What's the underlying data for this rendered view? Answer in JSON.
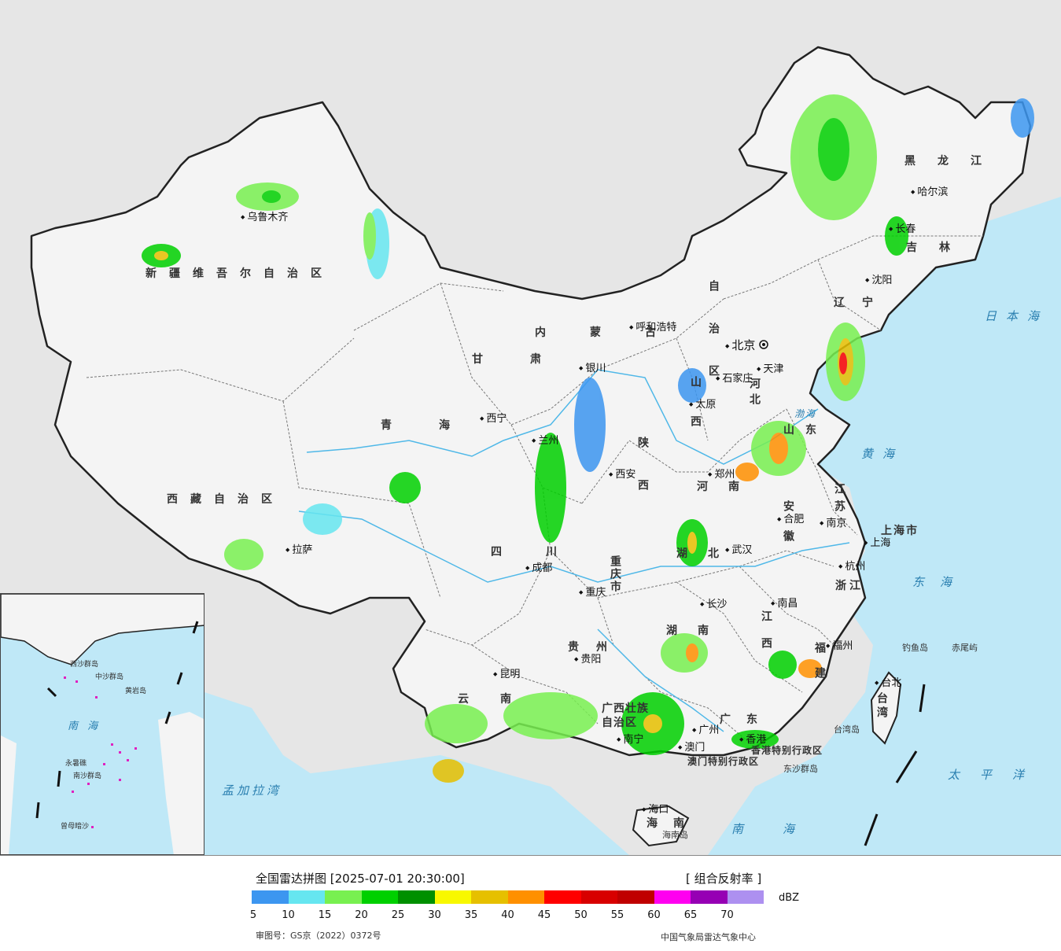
{
  "map": {
    "provinces": [
      {
        "id": "xinjiang",
        "name": "新疆维吾尔自治区"
      },
      {
        "id": "xizang",
        "name": "西藏自治区"
      },
      {
        "id": "qinghai",
        "name": "青海"
      },
      {
        "id": "gansu",
        "name": "甘肃"
      },
      {
        "id": "neimenggu",
        "name": "内蒙古"
      },
      {
        "id": "zizhi",
        "name": "自治区"
      },
      {
        "id": "heilongjiang",
        "name": "黑龙江"
      },
      {
        "id": "jilin",
        "name": "吉林"
      },
      {
        "id": "liaoning",
        "name": "辽宁"
      },
      {
        "id": "hebei",
        "name": "河北"
      },
      {
        "id": "shanxi",
        "name": "山西"
      },
      {
        "id": "shandong",
        "name": "山东"
      },
      {
        "id": "henan",
        "name": "河南"
      },
      {
        "id": "shaanxi",
        "name": "陕西"
      },
      {
        "id": "sichuan",
        "name": "四川"
      },
      {
        "id": "chongqing",
        "name": "重庆市"
      },
      {
        "id": "hubei",
        "name": "湖北"
      },
      {
        "id": "hunan",
        "name": "湖南"
      },
      {
        "id": "jiangxi",
        "name": "江西"
      },
      {
        "id": "anhui",
        "name": "安徽"
      },
      {
        "id": "jiangsu",
        "name": "江苏"
      },
      {
        "id": "zhejiang",
        "name": "浙江"
      },
      {
        "id": "fujian",
        "name": "福建"
      },
      {
        "id": "guizhou",
        "name": "贵州"
      },
      {
        "id": "yunnan",
        "name": "云南"
      },
      {
        "id": "guangxi",
        "name": "广西壮族自治区"
      },
      {
        "id": "guangdong",
        "name": "广东"
      },
      {
        "id": "hainan",
        "name": "海南"
      },
      {
        "id": "taiwan",
        "name": "台湾"
      },
      {
        "id": "shanghai",
        "name": "上海市"
      },
      {
        "id": "hongkong",
        "name": "香港特别行政区"
      },
      {
        "id": "macau",
        "name": "澳门特别行政区"
      }
    ],
    "cities": [
      {
        "id": "urumqi",
        "name": "乌鲁木齐"
      },
      {
        "id": "lhasa",
        "name": "拉萨"
      },
      {
        "id": "xining",
        "name": "西宁"
      },
      {
        "id": "lanzhou",
        "name": "兰州"
      },
      {
        "id": "yinchuan",
        "name": "银川"
      },
      {
        "id": "hohhot",
        "name": "呼和浩特"
      },
      {
        "id": "harbin",
        "name": "哈尔滨"
      },
      {
        "id": "changchun",
        "name": "长春"
      },
      {
        "id": "shenyang",
        "name": "沈阳"
      },
      {
        "id": "beijing",
        "name": "北京"
      },
      {
        "id": "tianjin",
        "name": "天津"
      },
      {
        "id": "shijiazhuang",
        "name": "石家庄"
      },
      {
        "id": "taiyuan",
        "name": "太原"
      },
      {
        "id": "zhengzhou",
        "name": "郑州"
      },
      {
        "id": "xian",
        "name": "西安"
      },
      {
        "id": "chengdu",
        "name": "成都"
      },
      {
        "id": "chongqing_c",
        "name": "重庆"
      },
      {
        "id": "wuhan",
        "name": "武汉"
      },
      {
        "id": "hefei",
        "name": "合肥"
      },
      {
        "id": "nanjing",
        "name": "南京"
      },
      {
        "id": "shanghai_c",
        "name": "上海"
      },
      {
        "id": "hangzhou",
        "name": "杭州"
      },
      {
        "id": "nanchang",
        "name": "南昌"
      },
      {
        "id": "changsha",
        "name": "长沙"
      },
      {
        "id": "fuzhou",
        "name": "福州"
      },
      {
        "id": "guiyang",
        "name": "贵阳"
      },
      {
        "id": "kunming",
        "name": "昆明"
      },
      {
        "id": "nanning",
        "name": "南宁"
      },
      {
        "id": "guangzhou",
        "name": "广州"
      },
      {
        "id": "hongkong_c",
        "name": "香港"
      },
      {
        "id": "macau_c",
        "name": "澳门"
      },
      {
        "id": "haikou",
        "name": "海口"
      },
      {
        "id": "taipei",
        "name": "台北"
      }
    ],
    "seas": [
      {
        "id": "japan-sea",
        "name": "日本海"
      },
      {
        "id": "bohai",
        "name": "渤海"
      },
      {
        "id": "yellow-sea",
        "name": "黄海"
      },
      {
        "id": "east-sea",
        "name": "东海"
      },
      {
        "id": "south-sea",
        "name": "南海"
      },
      {
        "id": "pacific",
        "name": "太平洋"
      },
      {
        "id": "bengal",
        "name": "孟加拉湾"
      }
    ],
    "islands": [
      {
        "id": "diaoyu",
        "name": "钓鱼岛"
      },
      {
        "id": "chiwei",
        "name": "赤尾屿"
      },
      {
        "id": "dongsha",
        "name": "东沙群岛"
      },
      {
        "id": "taiwan-island",
        "name": "台湾岛"
      },
      {
        "id": "hainan-island",
        "name": "海南岛"
      }
    ],
    "inset_labels": [
      {
        "id": "in-south-sea",
        "name": "南 海"
      },
      {
        "id": "in-xisha",
        "name": "西沙群岛"
      },
      {
        "id": "in-zhongsha",
        "name": "中沙群岛"
      },
      {
        "id": "in-nansha",
        "name": "南沙群岛"
      },
      {
        "id": "in-huangyan",
        "name": "黄岩岛"
      },
      {
        "id": "in-yongshu",
        "name": "永暑礁"
      },
      {
        "id": "in-zengmu",
        "name": "曾母暗沙"
      }
    ],
    "colors": {
      "sea": "#bfe8f7",
      "land": "#f2f2f2",
      "outside": "#e6e6e6",
      "border": "#111111",
      "river": "#4fb8e8"
    }
  },
  "legend": {
    "title": "全国雷达拼图 [2025-07-01 20:30:00]",
    "product": "[ 组合反射率 ]",
    "unit": "dBZ",
    "ticks": [
      "5",
      "10",
      "15",
      "20",
      "25",
      "30",
      "35",
      "40",
      "45",
      "50",
      "55",
      "60",
      "65",
      "70"
    ],
    "colors": [
      "#3c96f0",
      "#66e6f0",
      "#78f050",
      "#00d000",
      "#009000",
      "#f8f800",
      "#e6c000",
      "#ff9000",
      "#ff0000",
      "#d80000",
      "#c00000",
      "#ff00f0",
      "#9600b4",
      "#ad90f0"
    ],
    "approval": "审图号：GS京（2022）0372号",
    "agency": "中国气象局雷达气象中心"
  }
}
